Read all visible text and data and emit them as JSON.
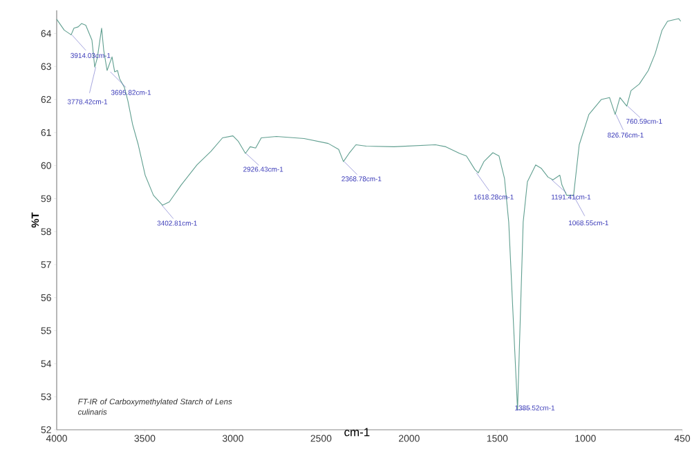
{
  "chart_data": {
    "type": "line",
    "xlabel": "cm-1",
    "ylabel": "%T",
    "x": [
      4000,
      3957,
      3918,
      3902,
      3878,
      3859,
      3835,
      3800,
      3784,
      3769,
      3745,
      3733,
      3714,
      3686,
      3671,
      3655,
      3643,
      3616,
      3596,
      3569,
      3537,
      3498,
      3451,
      3400,
      3361,
      3294,
      3204,
      3125,
      3059,
      3000,
      2969,
      2929,
      2902,
      2871,
      2839,
      2753,
      2596,
      2459,
      2400,
      2373,
      2341,
      2302,
      2243,
      2086,
      1851,
      1792,
      1714,
      1675,
      1627,
      1608,
      1576,
      1525,
      1490,
      1459,
      1435,
      1385,
      1353,
      1329,
      1282,
      1251,
      1212,
      1184,
      1145,
      1133,
      1106,
      1067,
      1035,
      980,
      910,
      863,
      831,
      804,
      765,
      741,
      694,
      643,
      604,
      565,
      534,
      471,
      459
    ],
    "series": [
      {
        "color": "#5f9e8f",
        "values": [
          64.43,
          64.1,
          63.96,
          64.16,
          64.2,
          64.3,
          64.25,
          63.8,
          62.98,
          63.27,
          64.16,
          63.49,
          62.88,
          63.29,
          62.84,
          62.88,
          62.63,
          62.37,
          61.96,
          61.24,
          60.63,
          59.71,
          59.1,
          58.8,
          58.9,
          59.41,
          60.02,
          60.43,
          60.84,
          60.9,
          60.73,
          60.37,
          60.57,
          60.53,
          60.84,
          60.88,
          60.82,
          60.67,
          60.49,
          60.12,
          60.37,
          60.63,
          60.59,
          60.57,
          60.63,
          60.57,
          60.37,
          60.29,
          59.88,
          59.78,
          60.12,
          60.39,
          60.29,
          59.61,
          58.29,
          52.6,
          58.29,
          59.51,
          60.02,
          59.92,
          59.65,
          59.57,
          59.71,
          59.41,
          59.1,
          59.1,
          60.63,
          61.55,
          62.0,
          62.06,
          61.55,
          62.06,
          61.8,
          62.27,
          62.47,
          62.88,
          63.39,
          64.1,
          64.37,
          64.45,
          64.37
        ]
      }
    ],
    "xlim": [
      4000,
      450
    ],
    "xticks": [
      4000,
      3500,
      3000,
      2500,
      2000,
      1500,
      1000,
      450
    ],
    "ylim": [
      52,
      64.7
    ],
    "yticks": [
      52,
      53,
      54,
      55,
      56,
      57,
      58,
      59,
      60,
      61,
      62,
      63,
      64
    ],
    "grid": false,
    "marker": "none",
    "line_style": "solid",
    "annotations": [
      {
        "text": "3914.03cm-1",
        "x": 3914.03,
        "y": 63.96
      },
      {
        "text": "3778.42cm-1",
        "x": 3778.42,
        "y": 62.98
      },
      {
        "text": "3695.82cm-1",
        "x": 3695.82,
        "y": 62.84
      },
      {
        "text": "3402.81cm-1",
        "x": 3402.81,
        "y": 58.8
      },
      {
        "text": "2926.43cm-1",
        "x": 2926.43,
        "y": 60.37
      },
      {
        "text": "2368.78cm-1",
        "x": 2368.78,
        "y": 60.12
      },
      {
        "text": "1618.28cm-1",
        "x": 1618.28,
        "y": 59.78
      },
      {
        "text": "1385.52cm-1",
        "x": 1385.52,
        "y": 52.6
      },
      {
        "text": "1191.41cm-1",
        "x": 1191.41,
        "y": 59.57
      },
      {
        "text": "1068.55cm-1",
        "x": 1068.55,
        "y": 59.1
      },
      {
        "text": "826.76cm-1",
        "x": 826.76,
        "y": 61.55
      },
      {
        "text": "760.59cm-1",
        "x": 760.59,
        "y": 61.8
      },
      "*FT-IR of Carboxymethylated Starch of Lens culinaris*"
    ]
  }
}
